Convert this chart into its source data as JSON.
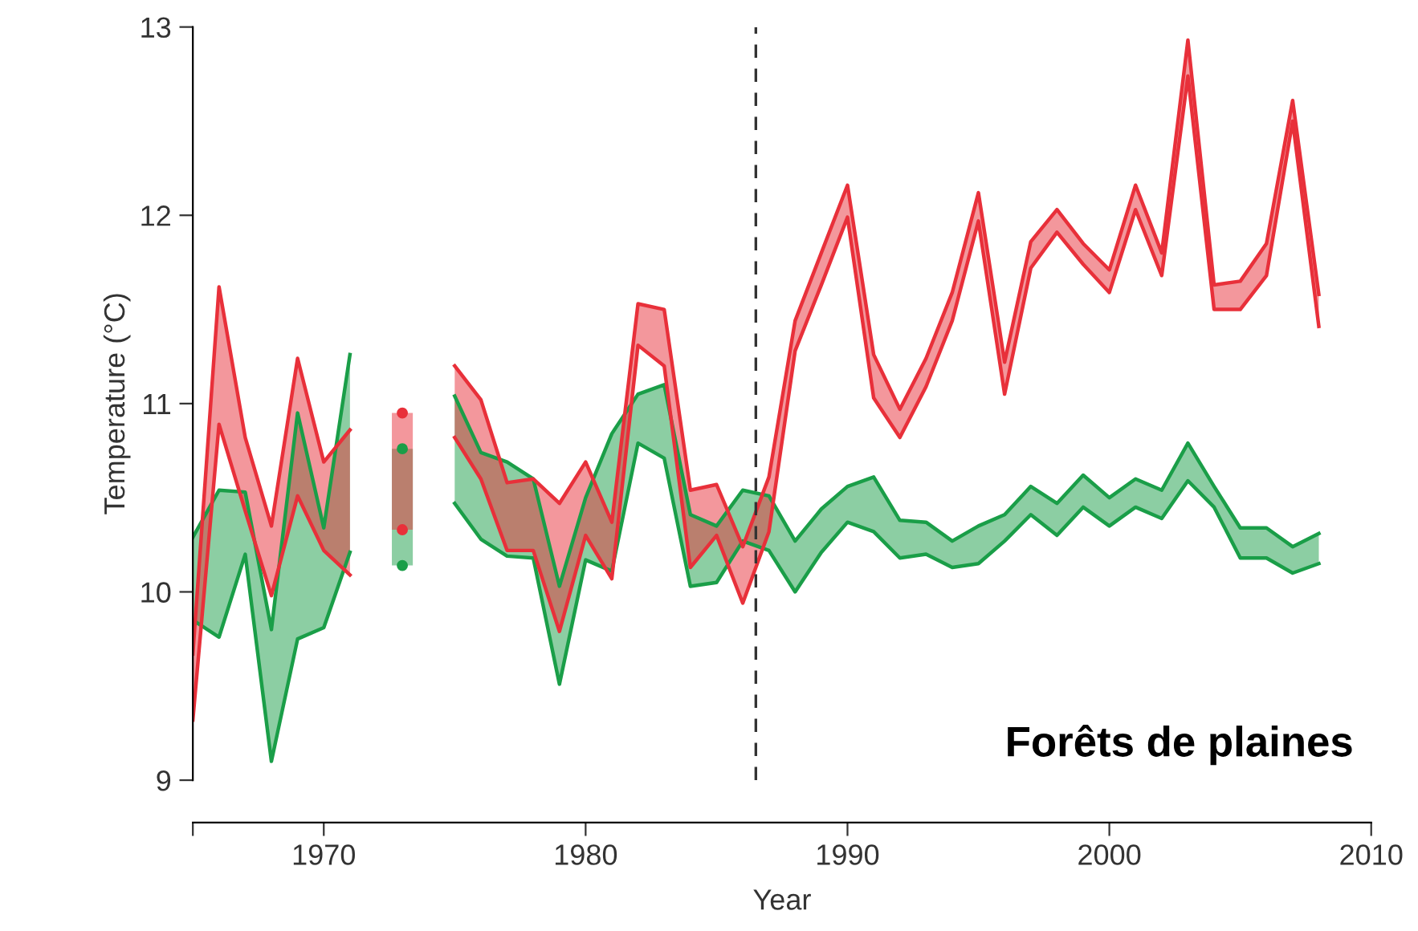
{
  "chart_data": {
    "type": "line",
    "xlabel": "Year",
    "ylabel": "Temperature (°C)",
    "x": [
      1965,
      1966,
      1967,
      1968,
      1969,
      1970,
      1971,
      1972,
      1973,
      1974,
      1975,
      1976,
      1977,
      1978,
      1979,
      1980,
      1981,
      1982,
      1983,
      1984,
      1985,
      1986,
      1987,
      1988,
      1989,
      1990,
      1991,
      1992,
      1993,
      1994,
      1995,
      1996,
      1997,
      1998,
      1999,
      2000,
      2001,
      2002,
      2003,
      2004,
      2005,
      2006,
      2007,
      2008
    ],
    "series": [
      {
        "color": "#1a9e48",
        "values": [
          10.29,
          10.54,
          10.53,
          9.8,
          10.95,
          10.34,
          11.26,
          null,
          10.76,
          null,
          11.04,
          10.74,
          10.69,
          10.6,
          10.03,
          10.5,
          10.84,
          11.05,
          11.1,
          10.41,
          10.35,
          10.54,
          10.51,
          10.27,
          10.44,
          10.56,
          10.61,
          10.38,
          10.37,
          10.27,
          10.35,
          10.41,
          10.56,
          10.47,
          10.62,
          10.5,
          10.6,
          10.54,
          10.79,
          10.56,
          10.34,
          10.34,
          10.24,
          10.31
        ],
        "upper": [
          10.29,
          10.54,
          10.53,
          9.8,
          10.95,
          10.34,
          11.26,
          null,
          10.76,
          null,
          11.04,
          10.74,
          10.69,
          10.6,
          10.03,
          10.5,
          10.84,
          11.05,
          11.1,
          10.41,
          10.35,
          10.54,
          10.51,
          10.27,
          10.44,
          10.56,
          10.61,
          10.38,
          10.37,
          10.27,
          10.35,
          10.41,
          10.56,
          10.47,
          10.62,
          10.5,
          10.6,
          10.54,
          10.79,
          10.56,
          10.34,
          10.34,
          10.24,
          10.31
        ],
        "lower": [
          9.85,
          9.76,
          10.2,
          9.1,
          9.75,
          9.81,
          10.21,
          null,
          10.14,
          null,
          10.47,
          10.28,
          10.19,
          10.18,
          9.51,
          10.17,
          10.11,
          10.79,
          10.71,
          10.03,
          10.05,
          10.27,
          10.22,
          10.0,
          10.21,
          10.37,
          10.32,
          10.18,
          10.2,
          10.13,
          10.15,
          10.27,
          10.41,
          10.3,
          10.45,
          10.35,
          10.45,
          10.39,
          10.59,
          10.45,
          10.18,
          10.18,
          10.1,
          10.15
        ]
      },
      {
        "color": "#1a9e48",
        "values": [
          9.85,
          9.76,
          10.2,
          9.1,
          9.75,
          9.81,
          10.21,
          null,
          10.14,
          null,
          10.47,
          10.28,
          10.19,
          10.18,
          9.51,
          10.17,
          10.11,
          10.79,
          10.71,
          10.03,
          10.05,
          10.27,
          10.22,
          10.0,
          10.21,
          10.37,
          10.32,
          10.18,
          10.2,
          10.13,
          10.15,
          10.27,
          10.41,
          10.3,
          10.45,
          10.35,
          10.45,
          10.39,
          10.59,
          10.45,
          10.18,
          10.18,
          10.1,
          10.15
        ]
      },
      {
        "color": "#e8303a",
        "values": [
          9.32,
          10.89,
          10.43,
          9.98,
          10.51,
          10.22,
          10.09,
          null,
          10.33,
          null,
          10.82,
          10.6,
          10.22,
          10.22,
          9.79,
          10.3,
          10.07,
          11.31,
          11.2,
          10.13,
          10.3,
          9.94,
          10.32,
          11.28,
          11.63,
          11.99,
          11.03,
          10.82,
          11.09,
          11.44,
          11.97,
          11.05,
          11.72,
          11.91,
          11.74,
          11.59,
          12.03,
          11.68,
          12.74,
          11.5,
          11.5,
          11.68,
          12.5,
          11.41
        ]
      },
      {
        "color": "#e8303a",
        "values": [
          9.67,
          11.62,
          10.82,
          10.35,
          11.24,
          10.69,
          10.86,
          null,
          10.95,
          null,
          11.2,
          11.02,
          10.58,
          10.6,
          10.47,
          10.69,
          10.37,
          11.53,
          11.5,
          10.54,
          10.57,
          10.24,
          10.61,
          11.44,
          11.8,
          12.16,
          11.26,
          10.97,
          11.24,
          11.59,
          12.12,
          11.22,
          11.86,
          12.03,
          11.85,
          11.71,
          12.16,
          11.8,
          12.93,
          11.63,
          11.65,
          11.85,
          12.61,
          11.58
        ],
        "upper": [
          9.67,
          11.62,
          10.82,
          10.35,
          11.24,
          10.69,
          10.86,
          null,
          10.95,
          null,
          11.2,
          11.02,
          10.58,
          10.6,
          10.47,
          10.69,
          10.37,
          11.53,
          11.5,
          10.54,
          10.57,
          10.24,
          10.61,
          11.44,
          11.8,
          12.16,
          11.26,
          10.97,
          11.24,
          11.59,
          12.12,
          11.22,
          11.86,
          12.03,
          11.85,
          11.71,
          12.16,
          11.8,
          12.93,
          11.63,
          11.65,
          11.85,
          12.61,
          11.58
        ],
        "lower": [
          9.32,
          10.89,
          10.43,
          9.98,
          10.51,
          10.22,
          10.09,
          null,
          10.33,
          null,
          10.82,
          10.6,
          10.22,
          10.22,
          9.79,
          10.3,
          10.07,
          11.31,
          11.2,
          10.13,
          10.3,
          9.94,
          10.32,
          11.28,
          11.63,
          11.99,
          11.03,
          10.82,
          11.09,
          11.44,
          11.97,
          11.05,
          11.72,
          11.91,
          11.74,
          11.59,
          12.03,
          11.68,
          12.74,
          11.5,
          11.5,
          11.68,
          12.5,
          11.41
        ]
      }
    ],
    "xlim": [
      1965,
      2010
    ],
    "xticks": [
      {
        "value": 1965,
        "label": null
      },
      1970,
      1980,
      1990,
      2000,
      2010
    ],
    "ylim": [
      9,
      13
    ],
    "yticks": [
      9,
      10,
      11,
      12,
      13
    ],
    "ref_lines": [
      {
        "axis": "x",
        "value": 1986.5,
        "color": "#333333",
        "line_style": "dashed"
      }
    ],
    "annotations": [
      "Forêts de plaines"
    ],
    "grid": false,
    "legend": false,
    "marker": "none",
    "line_style": "solid"
  }
}
